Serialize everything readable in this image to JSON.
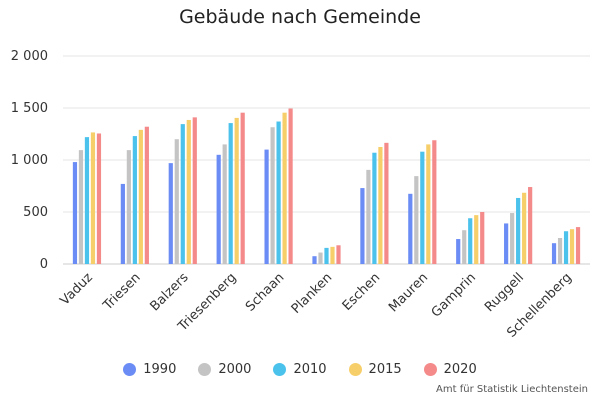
{
  "chart_data": {
    "type": "bar",
    "title": "Gebäude nach Gemeinde",
    "xlabel": "",
    "ylabel": "",
    "ylim": [
      0,
      2000
    ],
    "yticks": [
      0,
      500,
      1000,
      1500,
      2000
    ],
    "ytick_labels": [
      "0",
      "500",
      "1 000",
      "1 500",
      "2 000"
    ],
    "grid": true,
    "legend_position": "bottom",
    "categories": [
      "Vaduz",
      "Triesen",
      "Balzers",
      "Triesenberg",
      "Schaan",
      "Planken",
      "Eschen",
      "Mauren",
      "Gamprin",
      "Ruggell",
      "Schellenberg"
    ],
    "series": [
      {
        "name": "1990",
        "color": "#6b8cf5",
        "values": [
          980,
          770,
          970,
          1050,
          1100,
          75,
          730,
          675,
          240,
          390,
          200
        ]
      },
      {
        "name": "2000",
        "color": "#c4c4c4",
        "values": [
          1095,
          1095,
          1200,
          1150,
          1315,
          110,
          905,
          845,
          325,
          490,
          250
        ]
      },
      {
        "name": "2010",
        "color": "#4ac2ec",
        "values": [
          1220,
          1230,
          1345,
          1355,
          1370,
          155,
          1070,
          1080,
          440,
          635,
          315
        ]
      },
      {
        "name": "2015",
        "color": "#f7cf6a",
        "values": [
          1265,
          1290,
          1385,
          1405,
          1455,
          165,
          1125,
          1150,
          470,
          685,
          335
        ]
      },
      {
        "name": "2020",
        "color": "#f58a8a",
        "values": [
          1255,
          1320,
          1410,
          1455,
          1495,
          180,
          1165,
          1190,
          500,
          740,
          355
        ]
      }
    ]
  },
  "footer": {
    "credit": "Amt für Statistik Liechtenstein"
  }
}
